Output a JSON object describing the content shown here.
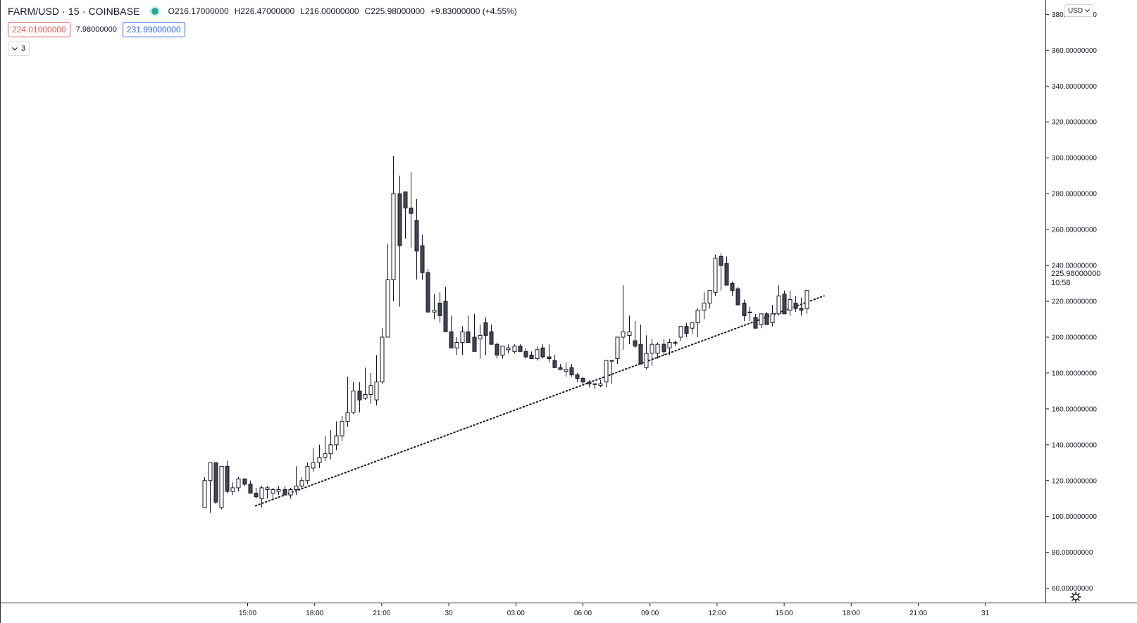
{
  "legend": {
    "symbol": "FARM/USD",
    "interval": "15",
    "exchange": "COINBASE",
    "separator": "·",
    "ohlc": [
      {
        "key": "O",
        "value": "216.17000000"
      },
      {
        "key": "H",
        "value": "226.47000000"
      },
      {
        "key": "L",
        "value": "216.00000000"
      },
      {
        "key": "C",
        "value": "225.98000000"
      }
    ],
    "change": "+9.83000000 (+4.55%)"
  },
  "trade": {
    "sell_price": "224.01000000",
    "spread": "7.98000000",
    "buy_price": "231.99000000"
  },
  "indicators_toggle": {
    "count": "3",
    "icon": "chevron-down-icon"
  },
  "currency": {
    "label": "USD",
    "icon": "chevron-down-icon"
  },
  "last_price": {
    "value": "225.98000000",
    "countdown": "10:58"
  },
  "colors": {
    "up_body": "#ffffff",
    "down_body": "#434651",
    "wick": "#131722",
    "status_dot": "#26a69a",
    "sell": "#ef5350",
    "buy": "#2962ff"
  },
  "chart_data": {
    "type": "candlestick",
    "x_tick_labels": [
      "15:00",
      "18:00",
      "21:00",
      "30",
      "03:00",
      "06:00",
      "09:00",
      "12:00",
      "15:00",
      "18:00",
      "21:00",
      "31"
    ],
    "y_tick_labels": [
      "380.00000000",
      "360.00000000",
      "340.00000000",
      "320.00000000",
      "300.00000000",
      "280.00000000",
      "260.00000000",
      "240.00000000",
      "220.00000000",
      "200.00000000",
      "180.00000000",
      "160.00000000",
      "140.00000000",
      "120.00000000",
      "100.00000000",
      "80.00000000",
      "60.00000000"
    ],
    "y_ticks": [
      380,
      360,
      340,
      320,
      300,
      280,
      260,
      240,
      220,
      200,
      180,
      160,
      140,
      120,
      100,
      80,
      60
    ],
    "ylim": [
      52,
      388
    ],
    "bar_minutes": 15,
    "start_time": "13:00",
    "grid": false,
    "candles": [
      [
        105,
        108,
        122,
        120
      ],
      [
        120,
        102,
        130,
        130
      ],
      [
        130,
        107,
        130,
        108
      ],
      [
        105,
        104,
        128,
        128
      ],
      [
        128,
        113,
        131,
        114
      ],
      [
        114,
        112,
        119,
        116
      ],
      [
        116,
        114,
        122,
        121
      ],
      [
        121,
        117,
        121,
        118
      ],
      [
        118,
        113,
        120,
        113
      ],
      [
        113,
        110,
        116,
        111
      ],
      [
        110,
        105,
        117,
        116
      ],
      [
        115,
        110,
        117,
        116
      ],
      [
        113,
        110,
        116,
        115
      ],
      [
        114,
        112,
        117,
        115
      ],
      [
        115,
        112,
        117,
        112
      ],
      [
        112,
        110,
        116,
        115
      ],
      [
        115,
        112,
        128,
        117
      ],
      [
        117,
        115,
        122,
        120
      ],
      [
        120,
        118,
        130,
        128
      ],
      [
        127,
        125,
        138,
        130
      ],
      [
        130,
        127,
        140,
        133
      ],
      [
        133,
        131,
        145,
        135
      ],
      [
        135,
        132,
        148,
        140
      ],
      [
        140,
        137,
        153,
        145
      ],
      [
        145,
        142,
        156,
        153
      ],
      [
        153,
        150,
        178,
        158
      ],
      [
        158,
        157,
        175,
        170
      ],
      [
        170,
        158,
        175,
        165
      ],
      [
        166,
        165,
        183,
        168
      ],
      [
        168,
        163,
        180,
        173
      ],
      [
        165,
        162,
        190,
        175
      ],
      [
        175,
        174,
        205,
        200
      ],
      [
        200,
        200,
        252,
        232
      ],
      [
        232,
        220,
        301,
        280
      ],
      [
        280,
        217,
        290,
        251
      ],
      [
        281,
        255,
        281,
        272
      ],
      [
        272,
        250,
        292,
        269
      ],
      [
        265,
        232,
        277,
        248
      ],
      [
        251,
        232,
        257,
        236
      ],
      [
        236,
        232,
        238,
        214
      ],
      [
        214,
        210,
        224,
        215
      ],
      [
        219,
        208,
        225,
        212
      ],
      [
        220,
        208,
        228,
        203
      ],
      [
        203,
        197,
        212,
        194
      ],
      [
        194,
        190,
        200,
        197
      ],
      [
        197,
        190,
        206,
        203
      ],
      [
        203,
        198,
        212,
        197
      ],
      [
        200,
        196,
        213,
        192
      ],
      [
        199,
        188,
        207,
        201
      ],
      [
        208,
        190,
        211,
        201
      ],
      [
        203,
        196,
        207,
        196
      ],
      [
        196,
        188,
        197,
        190
      ],
      [
        190,
        188,
        194,
        195
      ],
      [
        193,
        191,
        196,
        194
      ],
      [
        192,
        191,
        196,
        195
      ],
      [
        195,
        192,
        196,
        192
      ],
      [
        192,
        188,
        194,
        189
      ],
      [
        190,
        188,
        192,
        188
      ],
      [
        188,
        187,
        195,
        193
      ],
      [
        194,
        188,
        196,
        189
      ],
      [
        189,
        186,
        196,
        188
      ],
      [
        187,
        183,
        190,
        183
      ],
      [
        183,
        182,
        185,
        182
      ],
      [
        181,
        178,
        186,
        182
      ],
      [
        183,
        178,
        185,
        179
      ],
      [
        179,
        175,
        180,
        177
      ],
      [
        177,
        174,
        178,
        175
      ],
      [
        175,
        172,
        176,
        174
      ],
      [
        174,
        171,
        174,
        174
      ],
      [
        173,
        172,
        176,
        174
      ],
      [
        175,
        172,
        175,
        187
      ],
      [
        187,
        174,
        187,
        187
      ],
      [
        188,
        185,
        200,
        200
      ],
      [
        200,
        193,
        229,
        203
      ],
      [
        201,
        196,
        212,
        203
      ],
      [
        198,
        194,
        209,
        195
      ],
      [
        196,
        186,
        207,
        185
      ],
      [
        183,
        182,
        201,
        191
      ],
      [
        191,
        184,
        199,
        196
      ],
      [
        191,
        188,
        197,
        196
      ],
      [
        196,
        190,
        199,
        192
      ],
      [
        194,
        190,
        199,
        197
      ],
      [
        197,
        195,
        198,
        197
      ],
      [
        200,
        198,
        206,
        206
      ],
      [
        206,
        200,
        208,
        202
      ],
      [
        205,
        202,
        208,
        208
      ],
      [
        208,
        200,
        216,
        215
      ],
      [
        215,
        210,
        225,
        219
      ],
      [
        219,
        216,
        226,
        226
      ],
      [
        225,
        223,
        246,
        244
      ],
      [
        245,
        226,
        247,
        240
      ],
      [
        241,
        231,
        245,
        229
      ],
      [
        230,
        223,
        231,
        226
      ],
      [
        227,
        220,
        228,
        218
      ],
      [
        219,
        209,
        221,
        212
      ],
      [
        214,
        209,
        217,
        214
      ],
      [
        211,
        205,
        213,
        205
      ],
      [
        207,
        205,
        212,
        213
      ],
      [
        213,
        208,
        214,
        207
      ],
      [
        208,
        206,
        218,
        213
      ],
      [
        213,
        212,
        229,
        223
      ],
      [
        224,
        217,
        226,
        213
      ],
      [
        215,
        212,
        226,
        221
      ],
      [
        219,
        214,
        223,
        216
      ],
      [
        216,
        212,
        222,
        215
      ],
      [
        216,
        213,
        226,
        226
      ]
    ],
    "trendline": {
      "style": "dotted",
      "start": {
        "time": "15:15",
        "price": 106
      },
      "end": {
        "time": "16:00",
        "price": 223
      }
    }
  }
}
